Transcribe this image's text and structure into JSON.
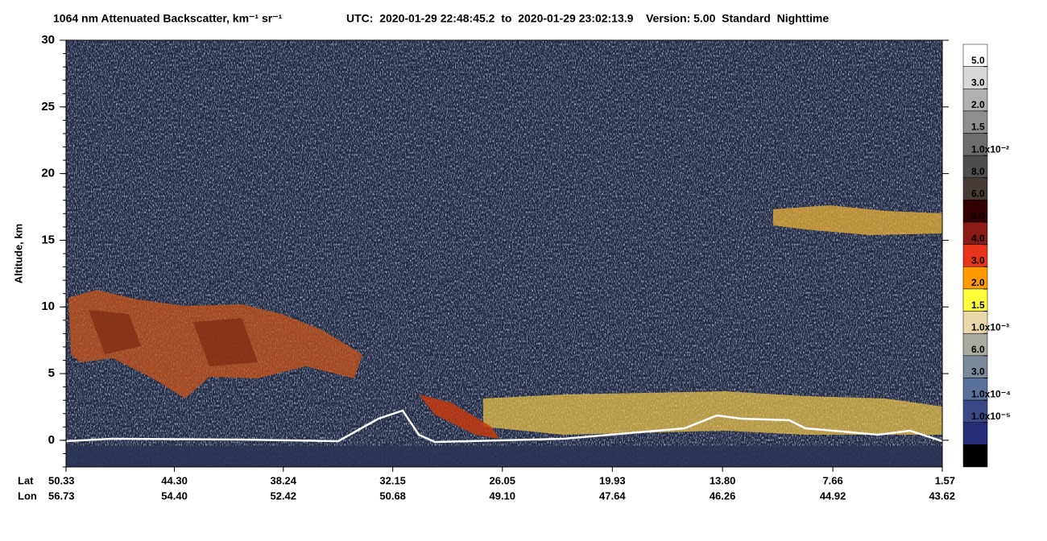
{
  "chart_data": {
    "type": "curtain",
    "title": "1064 nm Attenuated Backscatter, km⁻¹ sr⁻¹",
    "subtitle": "UTC:  2020-01-29 22:48:45.2  to  2020-01-29 23:02:13.9    Version: 5.00  Standard  Nighttime",
    "ylabel": "Altitude, km",
    "ylim": [
      -2,
      30
    ],
    "yticks": [
      0,
      5,
      10,
      15,
      20,
      25,
      30
    ],
    "x_row_labels": [
      "Lat",
      "Lon"
    ],
    "xlim": [
      50.33,
      1.57
    ],
    "xticks": [
      50.33,
      {
        "value": 44.3,
        "label": "44.30"
      },
      38.24,
      32.15,
      26.05,
      19.93,
      {
        "value": 13.8,
        "label": "13.80"
      },
      7.66,
      1.57
    ],
    "lon_labels": [
      "56.73",
      "54.40",
      "52.42",
      "50.68",
      "49.10",
      "47.64",
      "46.26",
      "44.92",
      "43.62"
    ],
    "colorbar": {
      "labels": [
        "5.0",
        "3.0",
        "2.0",
        "1.5",
        "1.0x10⁻²",
        "8.0",
        "6.0",
        "5.0",
        "4.0",
        "3.0",
        "2.0",
        "1.5",
        "1.0x10⁻³",
        "6.0",
        "3.0",
        "1.0x10⁻⁴",
        "1.0x10⁻⁵"
      ],
      "colors": [
        "#ffffff",
        "#d8d8d8",
        "#b0b0b0",
        "#8e8e8e",
        "#6c6c6c",
        "#4e4e4e",
        "#463a36",
        "#330000",
        "#8a1a14",
        "#e8341a",
        "#ff9a00",
        "#ffff3c",
        "#ead9a8",
        "#a8aaa0",
        "#7b8998",
        "#58709a",
        "#3a4a88",
        "#262c78",
        "#000000"
      ]
    }
  }
}
